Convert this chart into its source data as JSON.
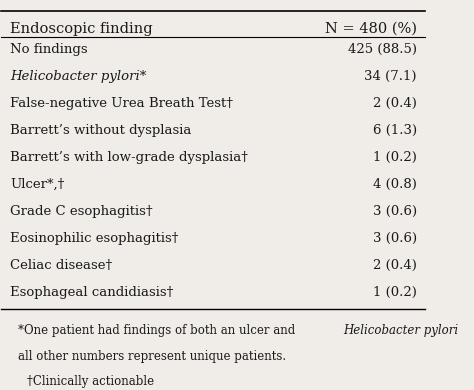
{
  "header_left": "Endoscopic finding",
  "header_right": "N = 480 (%)",
  "rows": [
    {
      "left": "No findings",
      "right": "425 (88.5)",
      "italic": false
    },
    {
      "left": "Helicobacter pylori*",
      "right": "34 (7.1)",
      "italic": true
    },
    {
      "left": "False-negative Urea Breath Test†",
      "right": "2 (0.4)",
      "italic": false
    },
    {
      "left": "Barrett’s without dysplasia",
      "right": "6 (1.3)",
      "italic": false
    },
    {
      "left": "Barrett’s with low-grade dysplasia†",
      "right": "1 (0.2)",
      "italic": false
    },
    {
      "left": "Ulcer*,†",
      "right": "4 (0.8)",
      "italic": false
    },
    {
      "left": "Grade C esophagitis†",
      "right": "3 (0.6)",
      "italic": false
    },
    {
      "left": "Eosinophilic esophagitis†",
      "right": "3 (0.6)",
      "italic": false
    },
    {
      "left": "Celiac disease†",
      "right": "2 (0.4)",
      "italic": false
    },
    {
      "left": "Esophageal candidiasis†",
      "right": "1 (0.2)",
      "italic": false
    }
  ],
  "footnote1_pre": "*One patient had findings of both an ulcer and ",
  "footnote1_italic": "Helicobacter pylori",
  "footnote1_post": ",",
  "footnote2": "all other numbers represent unique patients.",
  "footnote3": "†Clinically actionable",
  "bg_color": "#f0ede8",
  "text_color": "#1a1a1a",
  "font_size": 9.5,
  "header_font_size": 10.5,
  "footnote_font_size": 8.5
}
